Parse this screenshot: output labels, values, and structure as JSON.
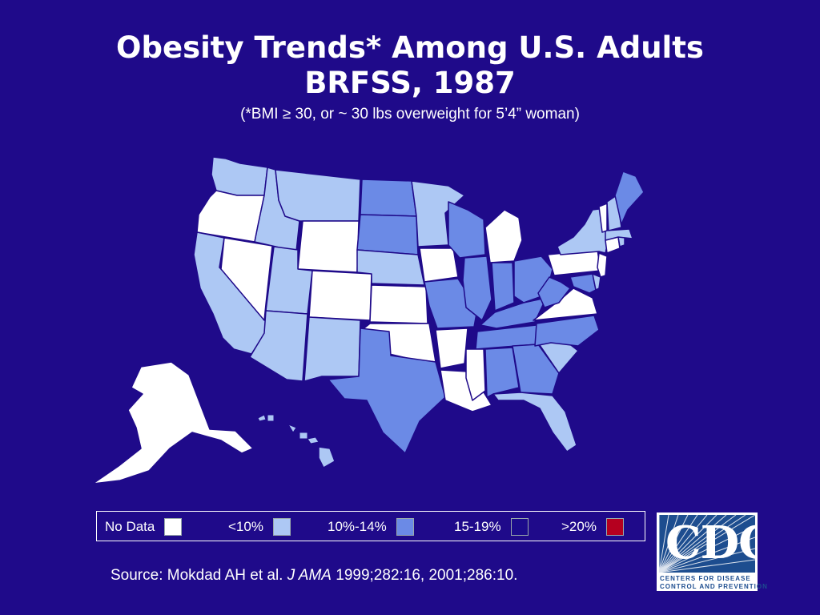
{
  "title": {
    "line1": "Obesity Trends* Among U.S. Adults",
    "line2": "BRFSS, 1987",
    "footnote": "(*BMI ≥ 30, or ~ 30 lbs overweight for 5’4” woman)"
  },
  "colors": {
    "background": "#1f0a8a",
    "no_data": "#ffffff",
    "lt10": "#adc8f4",
    "p10_14": "#6b8ae6",
    "p15_19": "#1b0b8c",
    "gt20": "#b5001f",
    "border": "#1f0a8a"
  },
  "legend": [
    {
      "label": "No Data",
      "class": "no_data"
    },
    {
      "label": "<10%",
      "class": "lt10"
    },
    {
      "label": "10%-14%",
      "class": "p10_14"
    },
    {
      "label": "15-19%",
      "class": "p15_19"
    },
    {
      "label": ">20%",
      "class": "gt20"
    }
  ],
  "states": [
    {
      "name": "Washington",
      "class": "lt10"
    },
    {
      "name": "Oregon",
      "class": "no_data"
    },
    {
      "name": "California",
      "class": "lt10"
    },
    {
      "name": "Nevada",
      "class": "no_data"
    },
    {
      "name": "Idaho",
      "class": "lt10"
    },
    {
      "name": "Montana",
      "class": "lt10"
    },
    {
      "name": "Wyoming",
      "class": "no_data"
    },
    {
      "name": "Utah",
      "class": "lt10"
    },
    {
      "name": "Colorado",
      "class": "no_data"
    },
    {
      "name": "Arizona",
      "class": "lt10"
    },
    {
      "name": "New Mexico",
      "class": "lt10"
    },
    {
      "name": "North Dakota",
      "class": "p10_14"
    },
    {
      "name": "South Dakota",
      "class": "p10_14"
    },
    {
      "name": "Nebraska",
      "class": "lt10"
    },
    {
      "name": "Kansas",
      "class": "no_data"
    },
    {
      "name": "Oklahoma",
      "class": "no_data"
    },
    {
      "name": "Texas",
      "class": "p10_14"
    },
    {
      "name": "Minnesota",
      "class": "lt10"
    },
    {
      "name": "Iowa",
      "class": "no_data"
    },
    {
      "name": "Missouri",
      "class": "p10_14"
    },
    {
      "name": "Arkansas",
      "class": "no_data"
    },
    {
      "name": "Louisiana",
      "class": "no_data"
    },
    {
      "name": "Wisconsin",
      "class": "p10_14"
    },
    {
      "name": "Illinois",
      "class": "p10_14"
    },
    {
      "name": "Michigan",
      "class": "no_data"
    },
    {
      "name": "Indiana",
      "class": "p10_14"
    },
    {
      "name": "Ohio",
      "class": "p10_14"
    },
    {
      "name": "Kentucky",
      "class": "p10_14"
    },
    {
      "name": "Tennessee",
      "class": "p10_14"
    },
    {
      "name": "Mississippi",
      "class": "no_data"
    },
    {
      "name": "Alabama",
      "class": "p10_14"
    },
    {
      "name": "Georgia",
      "class": "p10_14"
    },
    {
      "name": "Florida",
      "class": "lt10"
    },
    {
      "name": "South Carolina",
      "class": "lt10"
    },
    {
      "name": "North Carolina",
      "class": "p10_14"
    },
    {
      "name": "Virginia",
      "class": "no_data"
    },
    {
      "name": "West Virginia",
      "class": "p10_14"
    },
    {
      "name": "Maryland",
      "class": "p10_14"
    },
    {
      "name": "Delaware",
      "class": "lt10"
    },
    {
      "name": "Pennsylvania",
      "class": "no_data"
    },
    {
      "name": "New Jersey",
      "class": "no_data"
    },
    {
      "name": "New York",
      "class": "lt10"
    },
    {
      "name": "Connecticut",
      "class": "no_data"
    },
    {
      "name": "Rhode Island",
      "class": "lt10"
    },
    {
      "name": "Massachusetts",
      "class": "lt10"
    },
    {
      "name": "Vermont",
      "class": "no_data"
    },
    {
      "name": "New Hampshire",
      "class": "lt10"
    },
    {
      "name": "Maine",
      "class": "p10_14"
    },
    {
      "name": "Alaska",
      "class": "no_data"
    },
    {
      "name": "Hawaii",
      "class": "lt10"
    }
  ],
  "source": {
    "prefix": "Source: Mokdad AH et al. ",
    "journal": "J AMA",
    "suffix": " 1999;282:16, 2001;286:10."
  },
  "logo": {
    "mark": "CDC",
    "line1": "CENTERS FOR DISEASE",
    "line2": "CONTROL AND PREVENTION"
  }
}
